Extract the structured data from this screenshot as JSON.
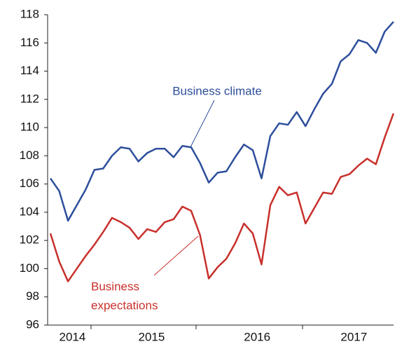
{
  "chart_data": {
    "type": "line",
    "categories": [
      null,
      null,
      "2014",
      null,
      null,
      null,
      null,
      null,
      null,
      null,
      null,
      "2015",
      null,
      null,
      null,
      null,
      null,
      null,
      null,
      null,
      null,
      null,
      null,
      "2016",
      null,
      null,
      null,
      null,
      null,
      null,
      null,
      null,
      null,
      null,
      "2017",
      null,
      null,
      null,
      null,
      null
    ],
    "series": [
      {
        "name": "Business climate",
        "color": "#2d4e9b",
        "values": [
          106.4,
          105.5,
          103.4,
          104.5,
          105.6,
          107.0,
          107.1,
          108.0,
          108.6,
          108.5,
          107.6,
          108.2,
          108.5,
          108.5,
          107.9,
          108.7,
          108.6,
          107.5,
          106.1,
          106.8,
          106.9,
          107.9,
          108.8,
          108.4,
          106.4,
          109.4,
          110.3,
          110.2,
          111.1,
          110.1,
          111.3,
          112.4,
          113.1,
          114.7,
          115.2,
          116.2,
          116.0,
          115.3,
          116.8,
          117.5
        ]
      },
      {
        "name": "Business expectations",
        "color": "#c8302b",
        "values": [
          102.5,
          100.5,
          99.1,
          100.0,
          100.9,
          101.7,
          102.6,
          103.6,
          103.3,
          102.9,
          102.1,
          102.8,
          102.6,
          103.3,
          103.5,
          104.4,
          104.1,
          102.4,
          99.3,
          100.1,
          100.7,
          101.8,
          103.2,
          102.5,
          100.3,
          104.5,
          105.8,
          105.2,
          105.4,
          103.2,
          104.3,
          105.4,
          105.3,
          106.5,
          106.7,
          107.3,
          107.8,
          107.4,
          109.3,
          111.0
        ]
      }
    ],
    "annotations": [
      {
        "lines": [
          "Business climate"
        ],
        "color": "#2d4e9b"
      },
      {
        "lines": [
          "Business",
          "expectations"
        ],
        "color": "#c8302b"
      }
    ],
    "ylim": [
      96,
      118
    ],
    "yticks": [
      96,
      98,
      100,
      102,
      104,
      106,
      108,
      110,
      112,
      114,
      116,
      118
    ]
  }
}
